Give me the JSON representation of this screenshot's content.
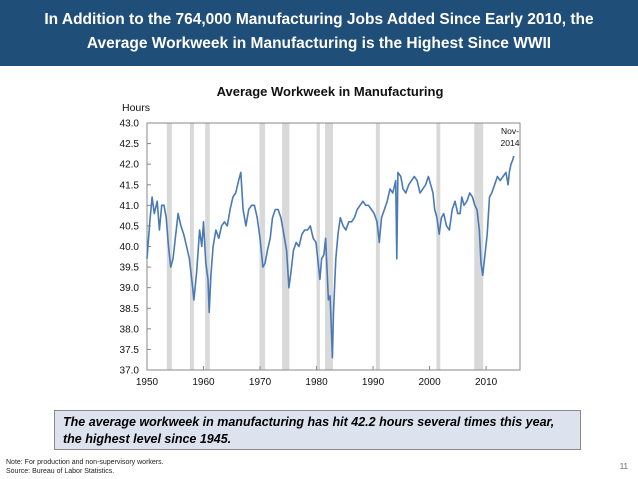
{
  "header": {
    "line1": "In Addition to the 764,000 Manufacturing Jobs Added Since Early 2010, the",
    "line2": "Average Workweek in Manufacturing is the Highest Since WWII"
  },
  "colors": {
    "header_bg": "#1f4e79",
    "line": "#4a7ab5",
    "recession": "#d9d9d9",
    "callout_bg": "#dde3ee"
  },
  "chart_data": {
    "type": "line",
    "title": "Average Workweek in Manufacturing",
    "ylabel": "Hours",
    "xlabel": "",
    "ylim": [
      37.0,
      43.0
    ],
    "xlim": [
      1950,
      2016
    ],
    "yticks": [
      "37.0",
      "37.5",
      "38.0",
      "38.5",
      "39.0",
      "39.5",
      "40.0",
      "40.5",
      "41.0",
      "41.5",
      "42.0",
      "42.5",
      "43.0"
    ],
    "xticks": [
      "1950",
      "1960",
      "1970",
      "1980",
      "1990",
      "2000",
      "2010"
    ],
    "grid": false,
    "annotation": "Nov-2014",
    "annotation_lines": [
      "Nov-",
      "2014"
    ],
    "recessions": [
      [
        1953.5,
        1954.4
      ],
      [
        1957.6,
        1958.3
      ],
      [
        1960.3,
        1961.1
      ],
      [
        1969.9,
        1970.9
      ],
      [
        1973.9,
        1975.2
      ],
      [
        1980.0,
        1980.6
      ],
      [
        1981.5,
        1982.9
      ],
      [
        1990.5,
        1991.2
      ],
      [
        2001.2,
        2001.9
      ],
      [
        2007.9,
        2009.5
      ]
    ],
    "series": [
      {
        "points": [
          [
            1950.0,
            39.7
          ],
          [
            1950.5,
            40.6
          ],
          [
            1950.9,
            41.2
          ],
          [
            1951.3,
            40.8
          ],
          [
            1951.8,
            41.1
          ],
          [
            1952.2,
            40.4
          ],
          [
            1952.6,
            41.0
          ],
          [
            1953.0,
            41.0
          ],
          [
            1953.4,
            40.7
          ],
          [
            1953.8,
            40.0
          ],
          [
            1954.2,
            39.5
          ],
          [
            1954.6,
            39.7
          ],
          [
            1955.0,
            40.2
          ],
          [
            1955.5,
            40.8
          ],
          [
            1956.0,
            40.5
          ],
          [
            1956.5,
            40.3
          ],
          [
            1957.0,
            40.0
          ],
          [
            1957.5,
            39.7
          ],
          [
            1958.0,
            39.1
          ],
          [
            1958.3,
            38.7
          ],
          [
            1958.8,
            39.4
          ],
          [
            1959.3,
            40.4
          ],
          [
            1959.7,
            40.0
          ],
          [
            1960.0,
            40.6
          ],
          [
            1960.4,
            39.6
          ],
          [
            1960.8,
            39.2
          ],
          [
            1961.0,
            38.4
          ],
          [
            1961.3,
            39.3
          ],
          [
            1961.7,
            40.0
          ],
          [
            1962.2,
            40.4
          ],
          [
            1962.7,
            40.2
          ],
          [
            1963.2,
            40.5
          ],
          [
            1963.7,
            40.6
          ],
          [
            1964.2,
            40.5
          ],
          [
            1964.7,
            40.9
          ],
          [
            1965.2,
            41.2
          ],
          [
            1965.7,
            41.3
          ],
          [
            1966.2,
            41.6
          ],
          [
            1966.6,
            41.8
          ],
          [
            1967.0,
            40.9
          ],
          [
            1967.5,
            40.5
          ],
          [
            1968.0,
            40.9
          ],
          [
            1968.5,
            41.0
          ],
          [
            1969.0,
            41.0
          ],
          [
            1969.5,
            40.7
          ],
          [
            1970.0,
            40.2
          ],
          [
            1970.5,
            39.5
          ],
          [
            1970.9,
            39.6
          ],
          [
            1971.3,
            39.9
          ],
          [
            1971.8,
            40.2
          ],
          [
            1972.2,
            40.7
          ],
          [
            1972.7,
            40.9
          ],
          [
            1973.2,
            40.9
          ],
          [
            1973.7,
            40.7
          ],
          [
            1974.2,
            40.3
          ],
          [
            1974.7,
            39.9
          ],
          [
            1975.1,
            39.0
          ],
          [
            1975.5,
            39.4
          ],
          [
            1975.9,
            39.9
          ],
          [
            1976.4,
            40.1
          ],
          [
            1976.9,
            40.0
          ],
          [
            1977.4,
            40.3
          ],
          [
            1977.9,
            40.4
          ],
          [
            1978.4,
            40.4
          ],
          [
            1978.9,
            40.5
          ],
          [
            1979.4,
            40.2
          ],
          [
            1979.9,
            40.1
          ],
          [
            1980.3,
            39.6
          ],
          [
            1980.6,
            39.2
          ],
          [
            1980.9,
            39.7
          ],
          [
            1981.3,
            39.8
          ],
          [
            1981.6,
            40.2
          ],
          [
            1981.9,
            39.3
          ],
          [
            1982.1,
            38.7
          ],
          [
            1982.4,
            38.8
          ],
          [
            1982.6,
            38.1
          ],
          [
            1982.8,
            37.3
          ],
          [
            1983.0,
            38.4
          ],
          [
            1983.4,
            39.7
          ],
          [
            1983.8,
            40.3
          ],
          [
            1984.2,
            40.7
          ],
          [
            1984.7,
            40.5
          ],
          [
            1985.2,
            40.4
          ],
          [
            1985.7,
            40.6
          ],
          [
            1986.2,
            40.6
          ],
          [
            1986.7,
            40.7
          ],
          [
            1987.2,
            40.9
          ],
          [
            1987.7,
            41.0
          ],
          [
            1988.2,
            41.1
          ],
          [
            1988.7,
            41.0
          ],
          [
            1989.2,
            41.0
          ],
          [
            1989.7,
            40.9
          ],
          [
            1990.2,
            40.8
          ],
          [
            1990.7,
            40.6
          ],
          [
            1991.1,
            40.1
          ],
          [
            1991.5,
            40.7
          ],
          [
            1992.0,
            40.9
          ],
          [
            1992.5,
            41.1
          ],
          [
            1993.0,
            41.4
          ],
          [
            1993.5,
            41.3
          ],
          [
            1994.0,
            41.6
          ],
          [
            1994.2,
            39.7
          ],
          [
            1994.4,
            41.8
          ],
          [
            1994.9,
            41.7
          ],
          [
            1995.3,
            41.4
          ],
          [
            1995.8,
            41.3
          ],
          [
            1996.3,
            41.5
          ],
          [
            1996.8,
            41.6
          ],
          [
            1997.3,
            41.7
          ],
          [
            1997.8,
            41.6
          ],
          [
            1998.3,
            41.3
          ],
          [
            1998.8,
            41.4
          ],
          [
            1999.3,
            41.5
          ],
          [
            1999.8,
            41.7
          ],
          [
            2000.2,
            41.5
          ],
          [
            2000.6,
            41.3
          ],
          [
            2000.9,
            40.9
          ],
          [
            2001.3,
            40.7
          ],
          [
            2001.7,
            40.3
          ],
          [
            2002.1,
            40.7
          ],
          [
            2002.5,
            40.8
          ],
          [
            2003.0,
            40.5
          ],
          [
            2003.5,
            40.4
          ],
          [
            2004.0,
            40.9
          ],
          [
            2004.5,
            41.1
          ],
          [
            2005.0,
            40.8
          ],
          [
            2005.4,
            40.8
          ],
          [
            2005.7,
            41.2
          ],
          [
            2006.1,
            41.0
          ],
          [
            2006.6,
            41.1
          ],
          [
            2007.1,
            41.3
          ],
          [
            2007.6,
            41.2
          ],
          [
            2008.0,
            41.0
          ],
          [
            2008.4,
            40.9
          ],
          [
            2008.8,
            40.4
          ],
          [
            2009.1,
            39.6
          ],
          [
            2009.4,
            39.3
          ],
          [
            2009.8,
            39.8
          ],
          [
            2010.2,
            40.3
          ],
          [
            2010.6,
            41.2
          ],
          [
            2011.0,
            41.3
          ],
          [
            2011.5,
            41.5
          ],
          [
            2012.0,
            41.7
          ],
          [
            2012.5,
            41.6
          ],
          [
            2013.0,
            41.7
          ],
          [
            2013.5,
            41.8
          ],
          [
            2013.9,
            41.5
          ],
          [
            2014.1,
            41.8
          ],
          [
            2014.4,
            42.0
          ],
          [
            2014.7,
            42.1
          ],
          [
            2014.9,
            42.2
          ]
        ]
      }
    ]
  },
  "callout": {
    "text": "The average workweek in manufacturing has hit 42.2 hours several times this year, the highest level since 1945."
  },
  "notes": {
    "note": "Note: For production and non-supervisory workers.",
    "source": "Source: Bureau of Labor Statistics."
  },
  "page_number": "11"
}
